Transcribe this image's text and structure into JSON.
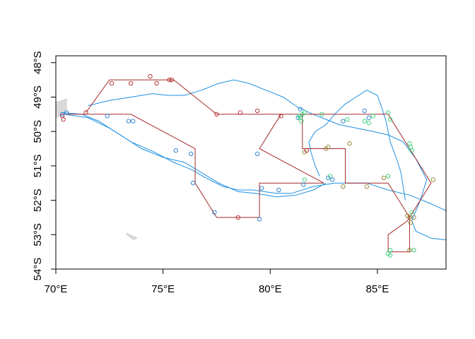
{
  "map": {
    "x_range": [
      70,
      88.2
    ],
    "y_range": [
      -54,
      -47.8
    ],
    "x_ticks": [
      {
        "value": 70,
        "label": "70°E"
      },
      {
        "value": 75,
        "label": "75°E"
      },
      {
        "value": 80,
        "label": "80°E"
      },
      {
        "value": 85,
        "label": "85°E"
      }
    ],
    "y_ticks": [
      {
        "value": -48,
        "label": "48°S"
      },
      {
        "value": -49,
        "label": "49°S"
      },
      {
        "value": -50,
        "label": "50°S"
      },
      {
        "value": -51,
        "label": "51°S"
      },
      {
        "value": -52,
        "label": "52°S"
      },
      {
        "value": -53,
        "label": "53°S"
      },
      {
        "value": -54,
        "label": "54°S"
      }
    ],
    "colors": {
      "track_red": "#a52a2a",
      "front_blue": "#1e90e0",
      "points_blue": "#1f78d1",
      "points_green": "#2ecc71",
      "points_olive": "#8b7b2b",
      "points_red": "#b22222",
      "land": "#d9d9d9"
    },
    "land": [
      [
        [
          69.8,
          -49.2
        ],
        [
          70.5,
          -49.05
        ],
        [
          70.5,
          -49.45
        ],
        [
          70.0,
          -49.6
        ],
        [
          69.8,
          -49.55
        ]
      ],
      [
        [
          73.3,
          -52.95
        ],
        [
          73.8,
          -53.1
        ],
        [
          73.6,
          -53.15
        ],
        [
          73.3,
          -53.0
        ]
      ]
    ],
    "track": [
      [
        70.4,
        -49.5
      ],
      [
        73.5,
        -49.5
      ],
      [
        76.5,
        -50.5
      ],
      [
        76.5,
        -51.5
      ],
      [
        77.5,
        -52.5
      ],
      [
        79.5,
        -52.5
      ],
      [
        79.5,
        -51.5
      ],
      [
        82.5,
        -51.5
      ],
      [
        79.5,
        -50.5
      ],
      [
        80.5,
        -49.5
      ],
      [
        81.5,
        -49.5
      ],
      [
        81.5,
        -50.5
      ],
      [
        83.5,
        -50.5
      ],
      [
        83.5,
        -51.5
      ],
      [
        85.5,
        -51.5
      ],
      [
        86.5,
        -52.5
      ],
      [
        86.5,
        -53.5
      ],
      [
        85.5,
        -53.5
      ],
      [
        85.5,
        -53.0
      ],
      [
        86.4,
        -52.6
      ],
      [
        87.5,
        -51.5
      ],
      [
        86.5,
        -50.5
      ],
      [
        85.5,
        -49.5
      ],
      [
        81.0,
        -49.5
      ],
      [
        80.5,
        -49.5
      ],
      [
        77.5,
        -49.5
      ],
      [
        75.5,
        -48.5
      ],
      [
        72.5,
        -48.5
      ],
      [
        71.4,
        -49.45
      ]
    ],
    "fronts": [
      [
        [
          70.3,
          -49.45
        ],
        [
          71.2,
          -49.5
        ],
        [
          72.0,
          -49.7
        ],
        [
          73.0,
          -50.1
        ],
        [
          74.0,
          -50.5
        ],
        [
          75.0,
          -50.75
        ],
        [
          76.0,
          -50.9
        ],
        [
          76.8,
          -51.2
        ],
        [
          77.6,
          -51.5
        ],
        [
          78.5,
          -51.75
        ],
        [
          79.3,
          -51.8
        ],
        [
          80.3,
          -51.9
        ],
        [
          81.2,
          -51.85
        ],
        [
          82.0,
          -51.7
        ],
        [
          82.6,
          -51.5
        ]
      ],
      [
        [
          70.4,
          -49.5
        ],
        [
          71.5,
          -49.6
        ],
        [
          72.5,
          -49.9
        ],
        [
          73.5,
          -50.3
        ],
        [
          74.6,
          -50.6
        ],
        [
          75.5,
          -50.9
        ],
        [
          76.3,
          -51.1
        ],
        [
          77.0,
          -51.35
        ],
        [
          77.8,
          -51.6
        ],
        [
          78.5,
          -51.7
        ],
        [
          79.2,
          -51.7
        ],
        [
          80.3,
          -51.8
        ],
        [
          81.0,
          -51.8
        ],
        [
          82.0,
          -51.6
        ],
        [
          83.0,
          -51.5
        ],
        [
          84.5,
          -51.5
        ],
        [
          85.5,
          -51.7
        ],
        [
          86.5,
          -51.85
        ],
        [
          87.3,
          -52.05
        ],
        [
          88.2,
          -52.3
        ]
      ],
      [
        [
          71.5,
          -49.25
        ],
        [
          72.5,
          -49.1
        ],
        [
          73.5,
          -49.0
        ],
        [
          74.5,
          -48.9
        ],
        [
          75.2,
          -48.95
        ],
        [
          76.0,
          -48.95
        ],
        [
          76.8,
          -48.8
        ],
        [
          77.6,
          -48.6
        ],
        [
          78.3,
          -48.5
        ],
        [
          79.0,
          -48.6
        ],
        [
          79.8,
          -48.8
        ],
        [
          80.6,
          -49.0
        ],
        [
          81.3,
          -49.3
        ],
        [
          82.0,
          -49.5
        ],
        [
          82.6,
          -49.65
        ],
        [
          83.2,
          -49.8
        ],
        [
          84.0,
          -49.9
        ],
        [
          84.8,
          -50.0
        ],
        [
          85.5,
          -50.1
        ],
        [
          86.2,
          -50.3
        ],
        [
          86.8,
          -50.8
        ],
        [
          87.3,
          -51.4
        ],
        [
          87.0,
          -52.0
        ],
        [
          86.6,
          -52.6
        ],
        [
          86.8,
          -52.9
        ],
        [
          87.5,
          -53.1
        ],
        [
          88.2,
          -53.15
        ]
      ],
      [
        [
          82.3,
          -51.3
        ],
        [
          82.1,
          -51.0
        ],
        [
          81.9,
          -50.6
        ],
        [
          81.8,
          -50.3
        ],
        [
          82.1,
          -50.0
        ],
        [
          82.6,
          -49.8
        ],
        [
          83.0,
          -49.5
        ],
        [
          83.5,
          -49.2
        ],
        [
          84.0,
          -49.0
        ],
        [
          84.5,
          -48.8
        ],
        [
          85.0,
          -48.95
        ],
        [
          85.2,
          -49.3
        ],
        [
          85.4,
          -49.7
        ],
        [
          85.6,
          -50.3
        ],
        [
          85.9,
          -50.8
        ],
        [
          86.1,
          -51.2
        ],
        [
          86.2,
          -51.6
        ],
        [
          86.3,
          -52.0
        ]
      ]
    ],
    "points": [
      {
        "x": 70.3,
        "y": -49.55,
        "c": "points_red"
      },
      {
        "x": 70.35,
        "y": -49.65,
        "c": "points_red"
      },
      {
        "x": 70.3,
        "y": -49.5,
        "c": "points_blue"
      },
      {
        "x": 70.5,
        "y": -49.45,
        "c": "points_blue"
      },
      {
        "x": 71.4,
        "y": -49.45,
        "c": "points_red"
      },
      {
        "x": 72.4,
        "y": -49.55,
        "c": "points_blue"
      },
      {
        "x": 72.6,
        "y": -48.6,
        "c": "points_red"
      },
      {
        "x": 73.5,
        "y": -48.6,
        "c": "points_red"
      },
      {
        "x": 73.4,
        "y": -49.7,
        "c": "points_blue"
      },
      {
        "x": 73.6,
        "y": -49.7,
        "c": "points_blue"
      },
      {
        "x": 74.4,
        "y": -48.4,
        "c": "points_red"
      },
      {
        "x": 74.7,
        "y": -48.6,
        "c": "points_red"
      },
      {
        "x": 75.3,
        "y": -48.5,
        "c": "points_red"
      },
      {
        "x": 75.4,
        "y": -48.5,
        "c": "points_red"
      },
      {
        "x": 75.6,
        "y": -50.55,
        "c": "points_blue"
      },
      {
        "x": 76.3,
        "y": -50.65,
        "c": "points_blue"
      },
      {
        "x": 76.4,
        "y": -51.5,
        "c": "points_blue"
      },
      {
        "x": 77.5,
        "y": -49.5,
        "c": "points_red"
      },
      {
        "x": 78.6,
        "y": -49.45,
        "c": "points_red"
      },
      {
        "x": 77.4,
        "y": -52.35,
        "c": "points_blue"
      },
      {
        "x": 78.5,
        "y": -52.5,
        "c": "points_red"
      },
      {
        "x": 79.4,
        "y": -49.4,
        "c": "points_red"
      },
      {
        "x": 79.4,
        "y": -50.65,
        "c": "points_blue"
      },
      {
        "x": 79.5,
        "y": -52.55,
        "c": "points_blue"
      },
      {
        "x": 79.6,
        "y": -51.65,
        "c": "points_blue"
      },
      {
        "x": 80.4,
        "y": -51.7,
        "c": "points_blue"
      },
      {
        "x": 80.5,
        "y": -49.55,
        "c": "points_red"
      },
      {
        "x": 81.3,
        "y": -49.6,
        "c": "points_blue"
      },
      {
        "x": 81.35,
        "y": -49.55,
        "c": "points_green"
      },
      {
        "x": 81.4,
        "y": -49.6,
        "c": "points_green"
      },
      {
        "x": 81.45,
        "y": -49.7,
        "c": "points_green"
      },
      {
        "x": 81.5,
        "y": -49.5,
        "c": "points_green"
      },
      {
        "x": 81.4,
        "y": -49.35,
        "c": "points_blue"
      },
      {
        "x": 81.6,
        "y": -49.45,
        "c": "points_green"
      },
      {
        "x": 81.6,
        "y": -50.6,
        "c": "points_olive"
      },
      {
        "x": 81.7,
        "y": -50.55,
        "c": "points_red"
      },
      {
        "x": 81.6,
        "y": -51.4,
        "c": "points_green"
      },
      {
        "x": 81.55,
        "y": -51.55,
        "c": "points_blue"
      },
      {
        "x": 82.4,
        "y": -49.5,
        "c": "points_green"
      },
      {
        "x": 82.6,
        "y": -50.5,
        "c": "points_olive"
      },
      {
        "x": 82.7,
        "y": -50.45,
        "c": "points_olive"
      },
      {
        "x": 82.7,
        "y": -51.35,
        "c": "points_blue"
      },
      {
        "x": 82.8,
        "y": -51.3,
        "c": "points_green"
      },
      {
        "x": 82.9,
        "y": -51.4,
        "c": "points_blue"
      },
      {
        "x": 83.4,
        "y": -49.7,
        "c": "points_blue"
      },
      {
        "x": 83.6,
        "y": -49.65,
        "c": "points_green"
      },
      {
        "x": 83.4,
        "y": -51.6,
        "c": "points_olive"
      },
      {
        "x": 83.7,
        "y": -50.35,
        "c": "points_olive"
      },
      {
        "x": 84.4,
        "y": -49.4,
        "c": "points_blue"
      },
      {
        "x": 84.4,
        "y": -49.7,
        "c": "points_green"
      },
      {
        "x": 84.6,
        "y": -49.75,
        "c": "points_green"
      },
      {
        "x": 84.6,
        "y": -49.6,
        "c": "points_blue"
      },
      {
        "x": 84.5,
        "y": -51.6,
        "c": "points_olive"
      },
      {
        "x": 84.8,
        "y": -49.55,
        "c": "points_green"
      },
      {
        "x": 85.3,
        "y": -51.35,
        "c": "points_olive"
      },
      {
        "x": 85.5,
        "y": -51.3,
        "c": "points_green"
      },
      {
        "x": 85.5,
        "y": -49.45,
        "c": "points_green"
      },
      {
        "x": 85.6,
        "y": -49.65,
        "c": "points_green"
      },
      {
        "x": 85.5,
        "y": -53.55,
        "c": "points_green"
      },
      {
        "x": 85.6,
        "y": -53.6,
        "c": "points_green"
      },
      {
        "x": 85.6,
        "y": -53.45,
        "c": "points_green"
      },
      {
        "x": 86.4,
        "y": -52.45,
        "c": "points_olive"
      },
      {
        "x": 86.5,
        "y": -52.5,
        "c": "points_olive"
      },
      {
        "x": 86.55,
        "y": -52.65,
        "c": "points_olive"
      },
      {
        "x": 86.6,
        "y": -52.35,
        "c": "points_green"
      },
      {
        "x": 86.7,
        "y": -52.5,
        "c": "points_olive"
      },
      {
        "x": 86.5,
        "y": -53.45,
        "c": "points_olive"
      },
      {
        "x": 86.7,
        "y": -53.45,
        "c": "points_green"
      },
      {
        "x": 86.5,
        "y": -50.35,
        "c": "points_green"
      },
      {
        "x": 86.6,
        "y": -50.55,
        "c": "points_green"
      },
      {
        "x": 86.55,
        "y": -50.45,
        "c": "points_green"
      },
      {
        "x": 87.6,
        "y": -51.4,
        "c": "points_olive"
      }
    ]
  }
}
